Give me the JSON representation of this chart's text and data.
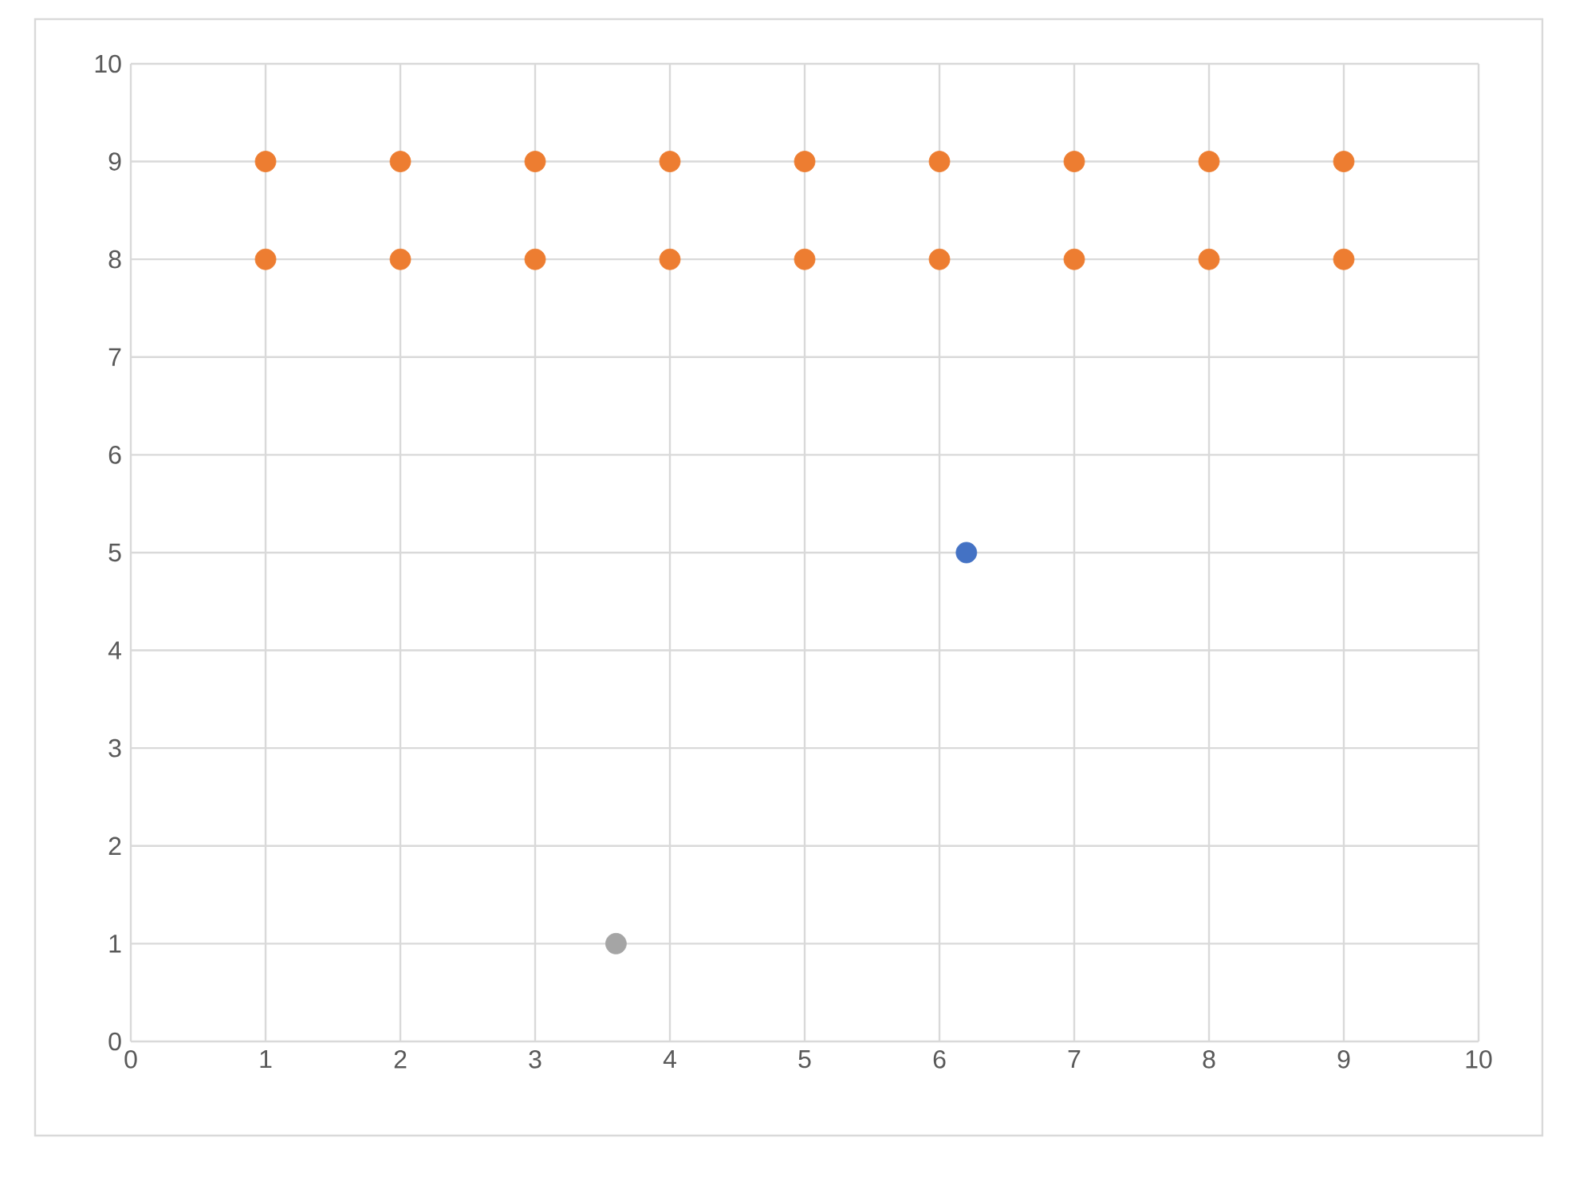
{
  "chart_data": {
    "type": "scatter",
    "series": [
      {
        "color": "#4472c4",
        "x": [
          6.2
        ],
        "values": [
          5
        ]
      },
      {
        "color": "#ed7d31",
        "x": [
          1,
          2,
          3,
          4,
          5,
          6,
          7,
          8,
          9,
          1,
          2,
          3,
          4,
          5,
          6,
          7,
          8,
          9
        ],
        "values": [
          9,
          9,
          9,
          9,
          9,
          9,
          9,
          9,
          9,
          8,
          8,
          8,
          8,
          8,
          8,
          8,
          8,
          8
        ]
      },
      {
        "color": "#a5a5a5",
        "x": [
          3.6
        ],
        "values": [
          1
        ]
      }
    ],
    "xlim": [
      0,
      10
    ],
    "ylim": [
      0,
      10
    ],
    "xticks": [
      0,
      1,
      2,
      3,
      4,
      5,
      6,
      7,
      8,
      9,
      10
    ],
    "yticks": [
      0,
      1,
      2,
      3,
      4,
      5,
      6,
      7,
      8,
      9,
      10
    ],
    "grid": true,
    "marker": "circle"
  }
}
